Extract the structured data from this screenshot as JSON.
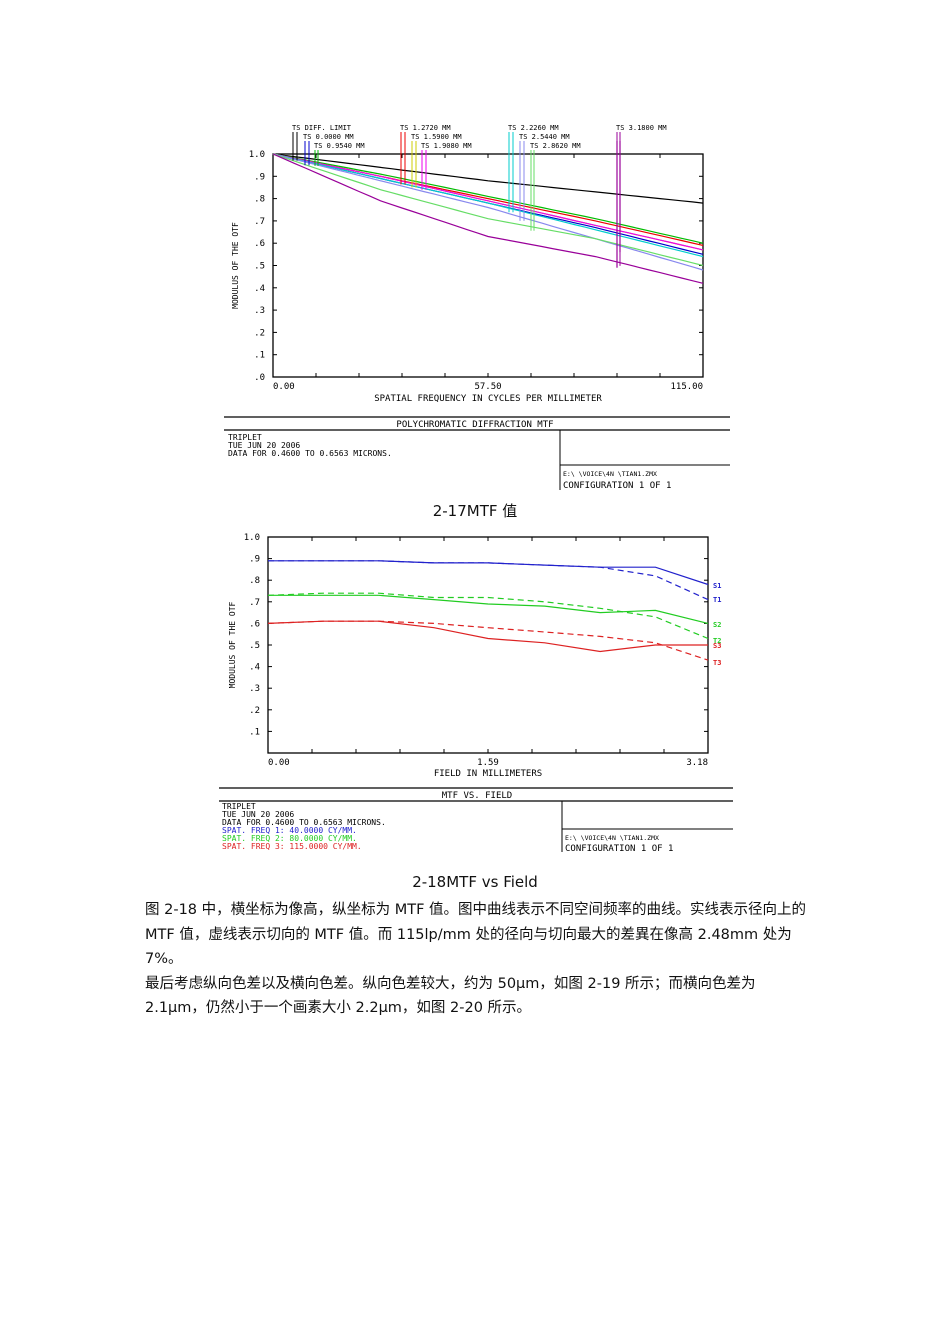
{
  "figure1": {
    "caption": "2-17MTF 值",
    "footer": {
      "title": "POLYCHROMATIC DIFFRACTION MTF",
      "lines": [
        "TRIPLET",
        "TUE JUN 20 2006",
        "DATA FOR 0.4600 TO 0.6563 MICRONS."
      ],
      "file": "E:\\    \\VOICE\\4N    \\TIAN1.ZMX",
      "config": "CONFIGURATION  1  OF  1"
    }
  },
  "figure2": {
    "caption": "2-18MTF vs Field",
    "footer": {
      "title": "MTF VS. FIELD",
      "lines": [
        "TRIPLET",
        "TUE JUN 20 2006",
        "DATA FOR 0.4600 TO 0.6563 MICRONS."
      ],
      "freq_lines": [
        {
          "text": "SPAT. FREQ 1:   40.0000 CY/MM.",
          "color": "#2222cc"
        },
        {
          "text": "SPAT. FREQ 2:   80.0000 CY/MM.",
          "color": "#22cc22"
        },
        {
          "text": "SPAT. FREQ 3:  115.0000 CY/MM.",
          "color": "#dd2222"
        }
      ],
      "file": "E:\\    \\VOICE\\4N    \\TIAN1.ZMX",
      "config": "CONFIGURATION  1  OF  1"
    }
  },
  "body": {
    "paragraph1": "图 2-18 中，横坐标为像高，纵坐标为 MTF 值。图中曲线表示不同空间频率的曲线。实线表示径向上的 MTF 值，虚线表示切向的 MTF 值。而 115lp/mm 处的径向与切向最大的差異在像高 2.48mm 处为 7%。",
    "paragraph2": " 最后考虑纵向色差以及横向色差。纵向色差较大，约为 50μm，如图 2-19 所示；而横向色差为 2.1μm，仍然小于一个画素大小 2.2μm，如图 2-20 所示。"
  },
  "chart_data": [
    {
      "type": "line",
      "title": "POLYCHROMATIC DIFFRACTION MTF",
      "xlabel": "SPATIAL FREQUENCY IN CYCLES PER MILLIMETER",
      "ylabel": "MODULUS OF THE OTF",
      "xlim": [
        0,
        115
      ],
      "ylim": [
        0,
        1.0
      ],
      "x_ticks": [
        "0.00",
        "57.50",
        "115.00"
      ],
      "y_ticks": [
        ".0",
        ".1",
        ".2",
        ".3",
        ".4",
        ".5",
        ".6",
        ".7",
        ".8",
        ".9",
        "1.0"
      ],
      "grid": false,
      "legend_position": "top",
      "legend": [
        "TS DIFF. LIMIT",
        "TS 0.0000 MM",
        "TS 0.9540 MM",
        "TS 1.2720 MM",
        "TS 1.5900 MM",
        "TS 1.9080 MM",
        "TS 2.2260 MM",
        "TS 2.5440 MM",
        "TS 2.8620 MM",
        "TS 3.1800 MM"
      ],
      "x": [
        0,
        28.75,
        57.5,
        86.25,
        115
      ],
      "series": [
        {
          "name": "TS DIFF. LIMIT",
          "color": "#000000",
          "values": [
            1.0,
            0.94,
            0.88,
            0.83,
            0.78
          ]
        },
        {
          "name": "TS 0.0000 MM",
          "color": "#0000cc",
          "values": [
            1.0,
            0.89,
            0.78,
            0.67,
            0.55
          ]
        },
        {
          "name": "TS 0.9540 MM",
          "color": "#00bb00",
          "values": [
            1.0,
            0.91,
            0.81,
            0.71,
            0.6
          ]
        },
        {
          "name": "TS 1.2720 MM",
          "color": "#ee0000",
          "values": [
            1.0,
            0.9,
            0.8,
            0.7,
            0.59
          ]
        },
        {
          "name": "TS 1.5900 MM",
          "color": "#cccc00",
          "values": [
            1.0,
            0.9,
            0.79,
            0.68,
            0.57
          ]
        },
        {
          "name": "TS 1.9080 MM",
          "color": "#ee00ee",
          "values": [
            1.0,
            0.9,
            0.79,
            0.68,
            0.57
          ]
        },
        {
          "name": "TS 2.2260 MM",
          "color": "#00cccc",
          "values": [
            1.0,
            0.89,
            0.78,
            0.66,
            0.54
          ]
        },
        {
          "name": "TS 2.5440 MM",
          "color": "#8888ee",
          "values": [
            1.0,
            0.88,
            0.76,
            0.62,
            0.48
          ]
        },
        {
          "name": "TS 2.8620 MM",
          "color": "#66dd66",
          "values": [
            1.0,
            0.84,
            0.71,
            0.62,
            0.5
          ]
        },
        {
          "name": "TS 3.1800 MM",
          "color": "#990099",
          "values": [
            1.0,
            0.79,
            0.63,
            0.54,
            0.42
          ]
        }
      ]
    },
    {
      "type": "line",
      "title": "MTF VS. FIELD",
      "xlabel": "FIELD IN MILLIMETERS",
      "ylabel": "MODULUS OF THE OTF",
      "xlim": [
        0,
        3.18
      ],
      "ylim": [
        0,
        1.0
      ],
      "x_ticks": [
        "0.00",
        "1.59",
        "3.18"
      ],
      "y_ticks": [
        ".1",
        ".2",
        ".3",
        ".4",
        ".5",
        ".6",
        ".7",
        ".8",
        ".9",
        "1.0"
      ],
      "grid": false,
      "legend_position": "right",
      "x": [
        0,
        0.4,
        0.8,
        1.2,
        1.59,
        2.0,
        2.4,
        2.8,
        3.18
      ],
      "series": [
        {
          "name": "S1",
          "style": "solid",
          "color": "#2222cc",
          "values": [
            0.89,
            0.89,
            0.89,
            0.88,
            0.88,
            0.87,
            0.86,
            0.86,
            0.78
          ]
        },
        {
          "name": "T1",
          "style": "dashed",
          "color": "#2222cc",
          "values": [
            0.89,
            0.89,
            0.89,
            0.88,
            0.88,
            0.87,
            0.86,
            0.82,
            0.71
          ]
        },
        {
          "name": "S2",
          "style": "solid",
          "color": "#22cc22",
          "values": [
            0.73,
            0.73,
            0.73,
            0.71,
            0.69,
            0.68,
            0.65,
            0.66,
            0.6
          ]
        },
        {
          "name": "T2",
          "style": "dashed",
          "color": "#22cc22",
          "values": [
            0.73,
            0.74,
            0.74,
            0.72,
            0.72,
            0.7,
            0.67,
            0.63,
            0.53
          ]
        },
        {
          "name": "S3",
          "style": "solid",
          "color": "#dd2222",
          "values": [
            0.6,
            0.61,
            0.61,
            0.58,
            0.53,
            0.51,
            0.47,
            0.5,
            0.5
          ]
        },
        {
          "name": "T3",
          "style": "dashed",
          "color": "#dd2222",
          "values": [
            0.6,
            0.61,
            0.61,
            0.6,
            0.58,
            0.56,
            0.54,
            0.51,
            0.43
          ]
        }
      ]
    }
  ]
}
